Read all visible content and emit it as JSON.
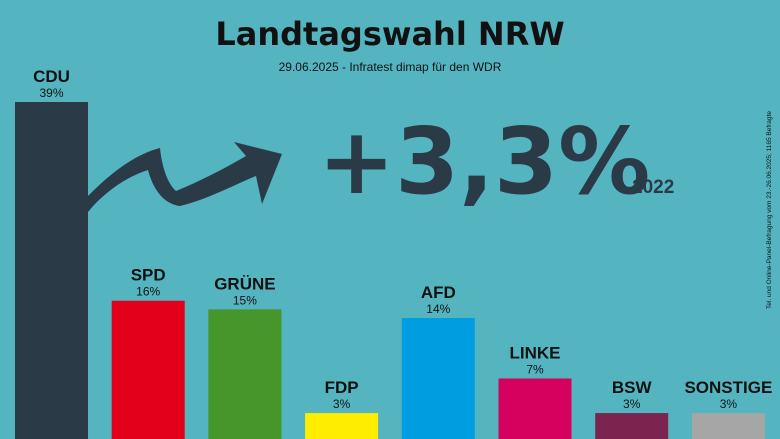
{
  "header": {
    "title": "Landtagswahl NRW",
    "subtitle": "29.06.2025 - Infratest dimap für den WDR"
  },
  "highlight": {
    "change_text": "+3,3%",
    "reference_year": "2022"
  },
  "side_note": "Tel. und Online-Panel-Befragung vom 23.-26.06.2025; 1165 Befragte",
  "colors": {
    "background": "#54b5c1",
    "arrow": "#2b3a47"
  },
  "chart_data": {
    "type": "bar",
    "title": "Landtagswahl NRW",
    "subtitle": "29.06.2025 - Infratest dimap für den WDR",
    "categories": [
      "CDU",
      "SPD",
      "GRÜNE",
      "FDP",
      "AFD",
      "LINKE",
      "BSW",
      "SONSTIGE"
    ],
    "values": [
      39,
      16,
      15,
      3,
      14,
      7,
      3,
      3
    ],
    "value_labels": [
      "39%",
      "16%",
      "15%",
      "3%",
      "14%",
      "7%",
      "3%",
      "3%"
    ],
    "colors": [
      "#2b3a47",
      "#e3001a",
      "#46962b",
      "#ffed00",
      "#009ee0",
      "#d6005e",
      "#7b2450",
      "#a6a6a6"
    ],
    "ylim": [
      0,
      39
    ],
    "xlabel": "",
    "ylabel": "",
    "grid": false,
    "legend": "none"
  }
}
